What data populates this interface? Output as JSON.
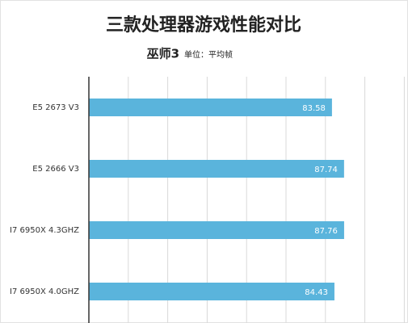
{
  "chart_data": {
    "type": "barh",
    "title": "三款处理器游戏性能对比",
    "subtitle": "巫师3",
    "unit_note": "单位：平均帧",
    "categories": [
      "E5 2673 V3",
      "E5 2666 V3",
      "I7 6950X 4.3GHZ",
      "I7 6950X 4.0GHZ"
    ],
    "values": [
      83.58,
      87.74,
      87.76,
      84.43
    ],
    "color": "#5ab4dc",
    "xlim": [
      0,
      110
    ],
    "grid": true
  }
}
